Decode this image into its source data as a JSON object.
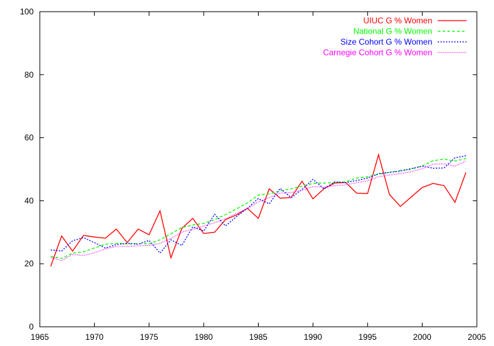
{
  "chart_data": {
    "type": "line",
    "title": "",
    "xlabel": "",
    "ylabel": "",
    "xlim": [
      1965,
      2005
    ],
    "ylim": [
      0,
      100
    ],
    "xticks": [
      1965,
      1970,
      1975,
      1980,
      1985,
      1990,
      1995,
      2000,
      2005
    ],
    "yticks": [
      0,
      20,
      40,
      60,
      80,
      100
    ],
    "grid": false,
    "legend_position": "top-right",
    "x": [
      1966,
      1967,
      1968,
      1969,
      1970,
      1971,
      1972,
      1973,
      1974,
      1975,
      1976,
      1977,
      1978,
      1979,
      1980,
      1981,
      1982,
      1983,
      1984,
      1985,
      1986,
      1987,
      1988,
      1989,
      1990,
      1991,
      1992,
      1993,
      1994,
      1995,
      1996,
      1997,
      1998,
      1999,
      2000,
      2001,
      2002,
      2003,
      2004
    ],
    "series": [
      {
        "name": "UIUC G % Women",
        "color": "#ff0000",
        "dash": "solid",
        "values": [
          19.2,
          28.8,
          24.0,
          29.0,
          28.5,
          28.1,
          31.0,
          26.7,
          31.0,
          29.2,
          36.8,
          21.9,
          31.2,
          34.4,
          29.6,
          30.0,
          34.0,
          35.5,
          37.6,
          34.4,
          43.8,
          40.8,
          41.0,
          46.2,
          40.6,
          43.8,
          45.6,
          45.8,
          42.4,
          42.3,
          54.6,
          42.0,
          38.2,
          41.2,
          44.2,
          45.5,
          44.8,
          39.5,
          49.0
        ]
      },
      {
        "name": "National G % Women",
        "color": "#00ff00",
        "dash": "dashed",
        "values": [
          22.3,
          21.7,
          23.4,
          23.8,
          25.0,
          26.2,
          26.5,
          26.3,
          26.4,
          26.3,
          27.6,
          29.5,
          31.5,
          32.3,
          32.8,
          34.0,
          35.6,
          37.4,
          39.3,
          41.8,
          42.2,
          43.1,
          43.8,
          44.6,
          45.5,
          45.6,
          45.8,
          46.0,
          47.2,
          47.6,
          48.4,
          49.0,
          49.6,
          50.0,
          51.0,
          52.7,
          53.2,
          52.6,
          53.4
        ]
      },
      {
        "name": "Size Cohort G % Women",
        "color": "#0000ff",
        "dash": "dotted",
        "values": [
          24.4,
          24.0,
          27.3,
          28.3,
          26.7,
          25.0,
          26.1,
          26.5,
          26.2,
          27.4,
          23.4,
          27.6,
          25.8,
          31.7,
          30.4,
          35.7,
          32.0,
          35.0,
          37.6,
          40.7,
          39.0,
          43.9,
          41.0,
          43.6,
          46.8,
          43.8,
          46.0,
          45.8,
          46.4,
          47.2,
          48.6,
          49.0,
          49.4,
          50.2,
          51.0,
          50.3,
          50.4,
          53.6,
          54.3
        ]
      },
      {
        "name": "Carnegie Cohort G % Women",
        "color": "#ff00ff",
        "dash": "fine-dotted",
        "values": [
          22.0,
          21.0,
          23.0,
          22.6,
          23.5,
          24.7,
          25.5,
          25.5,
          25.7,
          25.8,
          26.5,
          28.0,
          30.0,
          31.0,
          32.0,
          33.0,
          34.3,
          36.0,
          37.5,
          39.6,
          41.0,
          42.4,
          42.6,
          43.3,
          44.5,
          44.3,
          44.8,
          45.0,
          45.7,
          46.3,
          47.6,
          48.2,
          48.6,
          49.2,
          50.2,
          51.6,
          51.7,
          51.0,
          52.6
        ]
      }
    ]
  }
}
